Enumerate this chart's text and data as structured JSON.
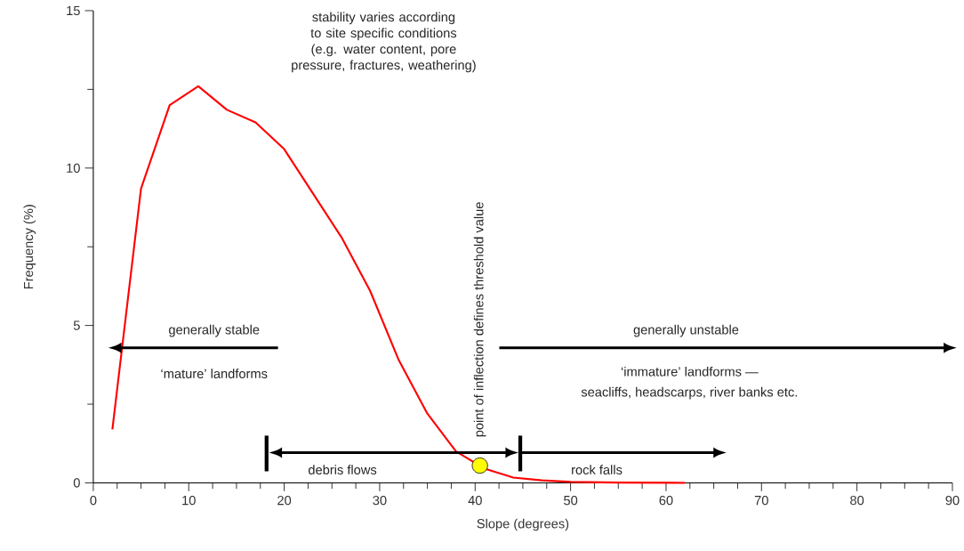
{
  "chart_data": {
    "type": "line",
    "xlabel": "Slope (degrees)",
    "ylabel": "Frequency (%)",
    "x": [
      2,
      5,
      8,
      11,
      14,
      17,
      20,
      23,
      26,
      29,
      32,
      35,
      38,
      41,
      44,
      47,
      50,
      55,
      62
    ],
    "series": [
      {
        "color": "#ff0000",
        "marker": "none",
        "values": [
          1.7,
          9.35,
          12.0,
          12.6,
          11.85,
          11.45,
          10.6,
          9.2,
          7.8,
          6.1,
          3.9,
          2.2,
          1.0,
          0.45,
          0.17,
          0.08,
          0.03,
          0.01,
          0
        ]
      },
      {
        "type": "scatter",
        "color": "#ffff00",
        "marker": "circle",
        "x": [
          40.5
        ],
        "values": [
          0.55
        ]
      }
    ],
    "xlim": [
      0,
      90
    ],
    "ylim": [
      0,
      15
    ],
    "xticks": [
      0,
      10,
      20,
      30,
      40,
      50,
      60,
      70,
      80,
      90
    ],
    "yticks": [
      0,
      5,
      10,
      15
    ],
    "grid": false,
    "annotations": [
      "stability varies according to site specific conditions (e.g. water content, pore pressure, fractures, weathering)",
      "generally stable",
      "‘mature’ landforms",
      "generally unstable",
      "‘immature’ landforms —",
      "seacliffs, headscarps, river banks etc.",
      "debris flows",
      "rock falls",
      {
        "text": "point of inflection defines threshold value",
        "x": 40.5,
        "y": 0.55
      }
    ]
  }
}
